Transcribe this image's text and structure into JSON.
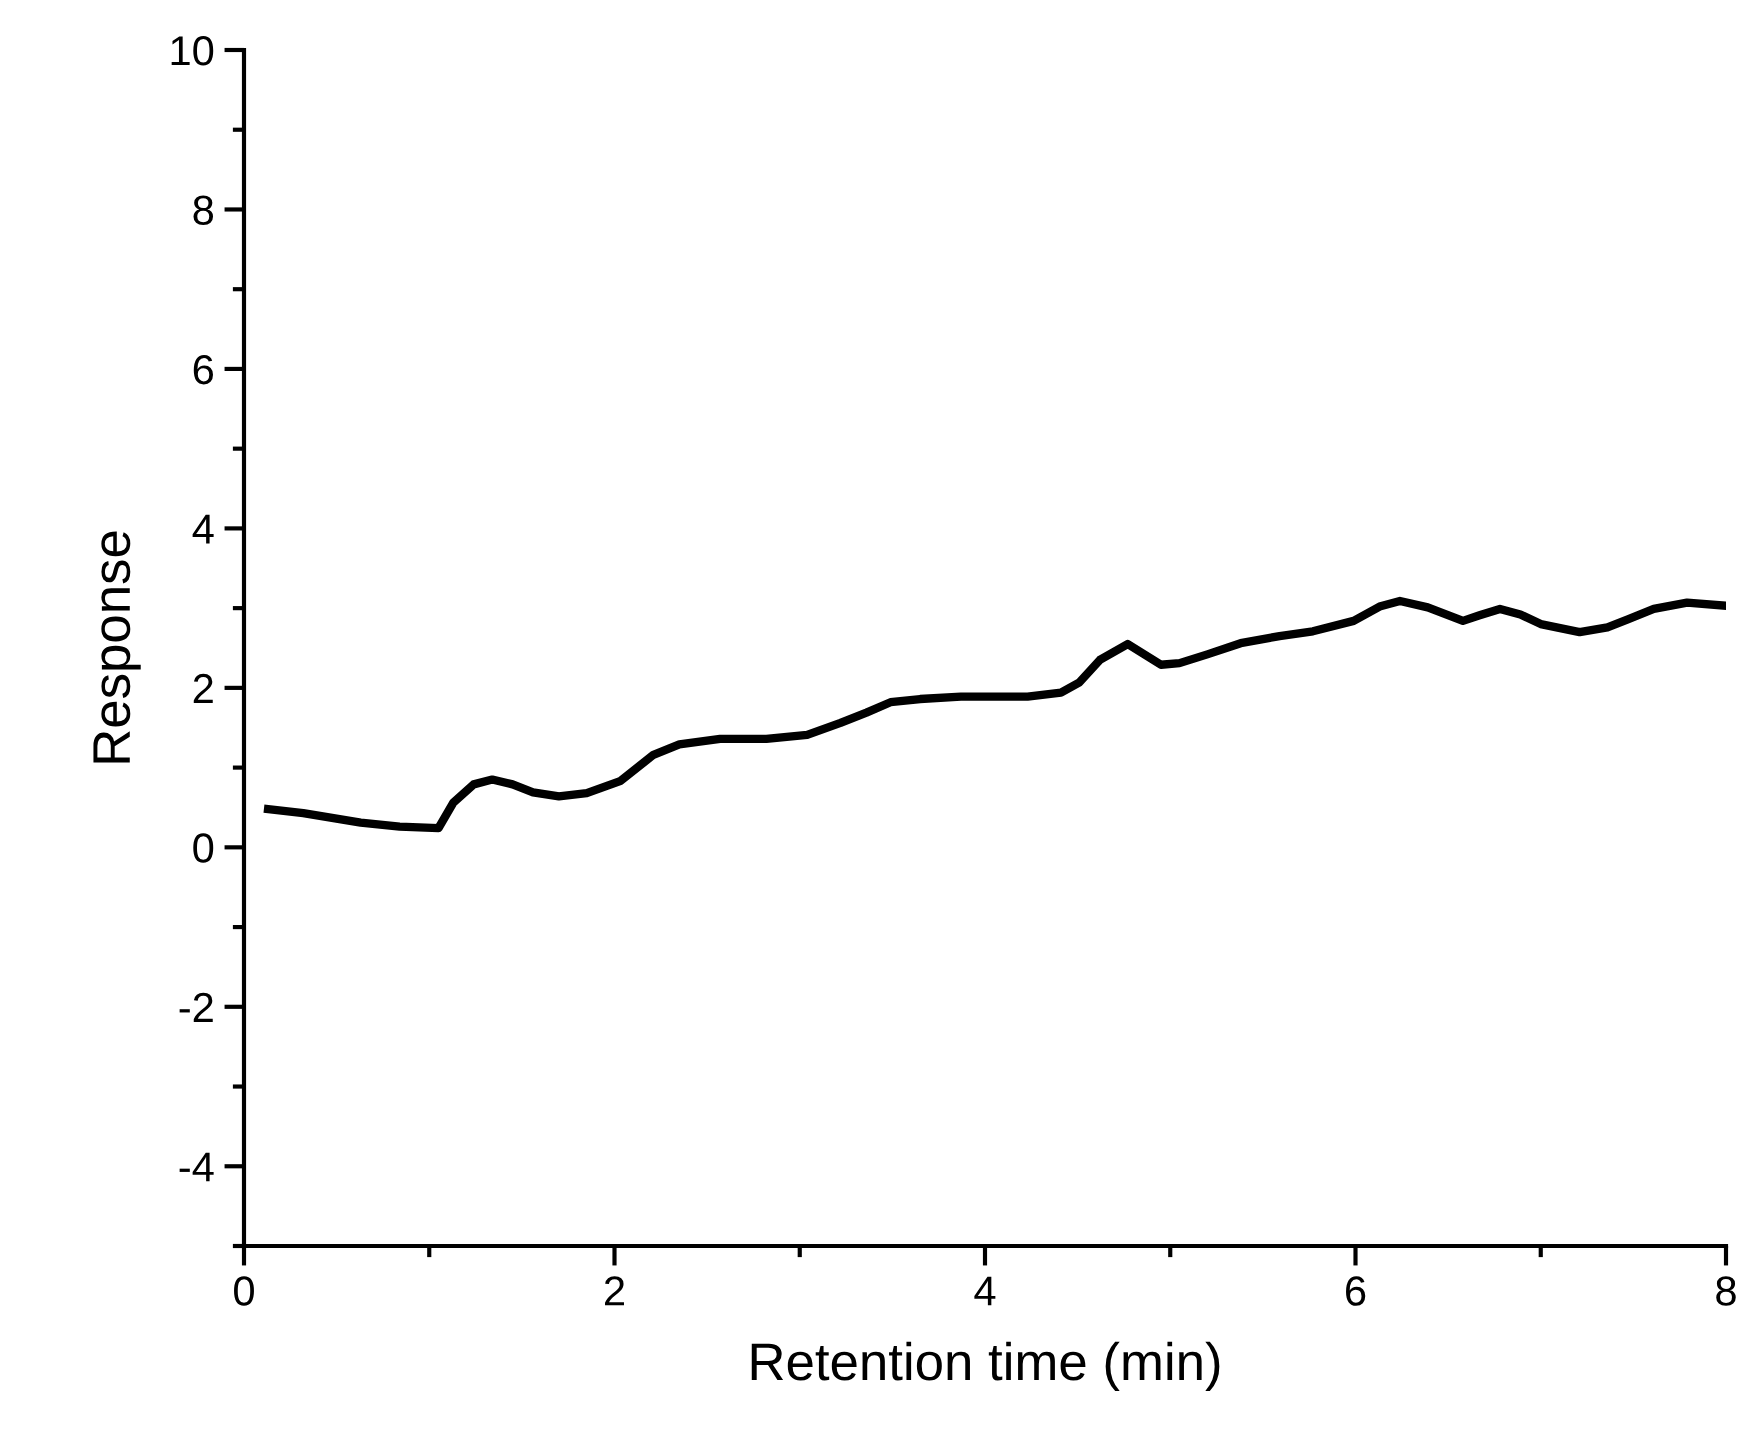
{
  "chart_data": {
    "type": "line",
    "xlabel": "Retention time (min)",
    "ylabel": "Response",
    "x": [
      0.13,
      0.32,
      0.63,
      0.84,
      1.05,
      1.13,
      1.24,
      1.34,
      1.45,
      1.56,
      1.7,
      1.85,
      2.03,
      2.21,
      2.35,
      2.57,
      2.82,
      3.04,
      3.22,
      3.36,
      3.49,
      3.65,
      3.87,
      4.08,
      4.23,
      4.41,
      4.51,
      4.62,
      4.77,
      4.95,
      5.05,
      5.2,
      5.38,
      5.59,
      5.77,
      5.99,
      6.13,
      6.24,
      6.39,
      6.58,
      6.67,
      6.78,
      6.89,
      7.0,
      7.21,
      7.36,
      7.47,
      7.61,
      7.79,
      8.0
    ],
    "series": [
      {
        "color": "#000000",
        "values": [
          0.48,
          0.43,
          0.31,
          0.26,
          0.24,
          0.56,
          0.79,
          0.85,
          0.79,
          0.69,
          0.64,
          0.68,
          0.83,
          1.16,
          1.29,
          1.36,
          1.36,
          1.41,
          1.56,
          1.69,
          1.82,
          1.86,
          1.89,
          1.89,
          1.89,
          1.94,
          2.07,
          2.35,
          2.55,
          2.29,
          2.31,
          2.42,
          2.56,
          2.65,
          2.71,
          2.84,
          3.02,
          3.09,
          3.01,
          2.84,
          2.91,
          2.99,
          2.92,
          2.8,
          2.7,
          2.76,
          2.86,
          2.99,
          3.07,
          3.03
        ]
      }
    ],
    "xlim": [
      0,
      8
    ],
    "ylim": [
      -5,
      10
    ],
    "xticks": [
      0,
      2,
      4,
      6,
      8
    ],
    "yticks": [
      -4,
      -2,
      0,
      2,
      4,
      6,
      8,
      10
    ],
    "grid": false,
    "legend": false,
    "marker": "none",
    "line_style": "solid"
  }
}
